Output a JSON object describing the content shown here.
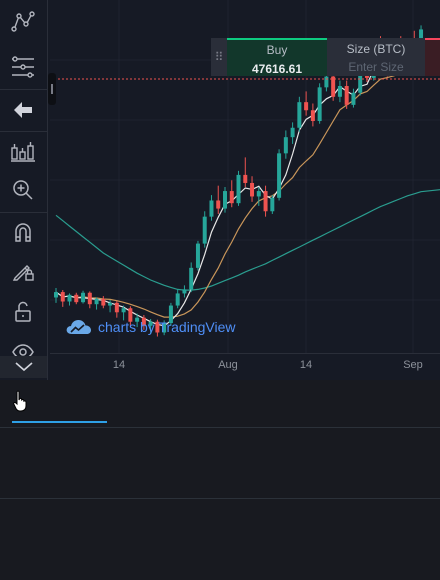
{
  "toolbar": {
    "items": [
      {
        "icon": "trend-line-icon"
      },
      {
        "icon": "fib-retracement-icon"
      },
      {
        "icon": "arrow-left-icon"
      },
      {
        "icon": "measure-icon"
      },
      {
        "icon": "zoom-in-icon"
      },
      {
        "icon": "magnet-icon"
      },
      {
        "icon": "lock-drawings-icon"
      },
      {
        "icon": "unlock-icon"
      },
      {
        "icon": "eye-icon"
      }
    ],
    "collapse_icon": "chevron-down-icon"
  },
  "trade_widget": {
    "buy_label": "Buy",
    "buy_price": "47616.61",
    "size_label": "Size (BTC)",
    "size_placeholder": "Enter Size"
  },
  "chart": {
    "attribution": "charts by TradingView",
    "x_ticks": [
      "14",
      "Aug",
      "14",
      "Sep"
    ]
  },
  "chart_data": {
    "type": "candlestick",
    "x_labels": [
      "14",
      "Aug",
      "14",
      "Sep"
    ],
    "colors": {
      "up": "#26a69a",
      "down": "#ef5350",
      "ma_fast": "#e8e8e8",
      "ma_mid": "#c9965a",
      "ma_slow": "#2a9d8f",
      "price_line": "#ef5350"
    },
    "candles": [
      [
        31400,
        32100,
        31000,
        31800
      ],
      [
        31800,
        31950,
        30700,
        31100
      ],
      [
        31100,
        31700,
        30800,
        31600
      ],
      [
        31600,
        31750,
        30900,
        31050
      ],
      [
        31050,
        31900,
        30950,
        31750
      ],
      [
        31750,
        31850,
        30600,
        30900
      ],
      [
        30900,
        31400,
        30500,
        31300
      ],
      [
        31300,
        31500,
        30600,
        30800
      ],
      [
        30800,
        31200,
        30300,
        31000
      ],
      [
        31000,
        31150,
        29900,
        30300
      ],
      [
        30300,
        30800,
        29700,
        30600
      ],
      [
        30600,
        30750,
        29300,
        29600
      ],
      [
        29600,
        30200,
        29200,
        29900
      ],
      [
        29900,
        30100,
        29000,
        29300
      ],
      [
        29300,
        29800,
        28700,
        29600
      ],
      [
        29600,
        29750,
        28500,
        28800
      ],
      [
        28800,
        29700,
        28600,
        29500
      ],
      [
        29500,
        31000,
        29300,
        30800
      ],
      [
        30800,
        32000,
        30600,
        31700
      ],
      [
        31700,
        32300,
        31400,
        32000
      ],
      [
        32000,
        34000,
        31800,
        33600
      ],
      [
        33600,
        35600,
        33400,
        35400
      ],
      [
        35400,
        37800,
        35100,
        37400
      ],
      [
        37400,
        39000,
        37100,
        38600
      ],
      [
        38600,
        39700,
        37600,
        38000
      ],
      [
        38000,
        39600,
        37700,
        39300
      ],
      [
        39300,
        40100,
        38100,
        38400
      ],
      [
        38400,
        40800,
        38200,
        40500
      ],
      [
        40500,
        41800,
        39600,
        39900
      ],
      [
        39900,
        40400,
        38500,
        38900
      ],
      [
        38900,
        39600,
        38200,
        39300
      ],
      [
        39300,
        39700,
        37400,
        37800
      ],
      [
        37800,
        39000,
        37600,
        38800
      ],
      [
        38800,
        42400,
        38600,
        42100
      ],
      [
        42100,
        43800,
        41700,
        43300
      ],
      [
        43300,
        44400,
        42800,
        44000
      ],
      [
        44000,
        46300,
        43700,
        45900
      ],
      [
        45900,
        46700,
        44900,
        45300
      ],
      [
        45300,
        45800,
        44100,
        44500
      ],
      [
        44500,
        47300,
        44300,
        47000
      ],
      [
        47000,
        48000,
        46700,
        47800
      ],
      [
        47800,
        48200,
        46000,
        46300
      ],
      [
        46300,
        47500,
        45900,
        47100
      ],
      [
        47100,
        47500,
        45400,
        45700
      ],
      [
        45700,
        46900,
        45500,
        46600
      ],
      [
        46600,
        49300,
        46400,
        48900
      ],
      [
        48900,
        49700,
        47400,
        47700
      ],
      [
        47700,
        50300,
        47500,
        50000
      ],
      [
        50000,
        50800,
        48700,
        49000
      ],
      [
        49000,
        49500,
        47800,
        48100
      ],
      [
        48100,
        49500,
        47900,
        49200
      ],
      [
        49200,
        50800,
        48000,
        48400
      ],
      [
        48400,
        50500,
        48200,
        50200
      ],
      [
        50200,
        51200,
        49300,
        49500
      ],
      [
        49500,
        51600,
        49300,
        51300
      ]
    ]
  }
}
